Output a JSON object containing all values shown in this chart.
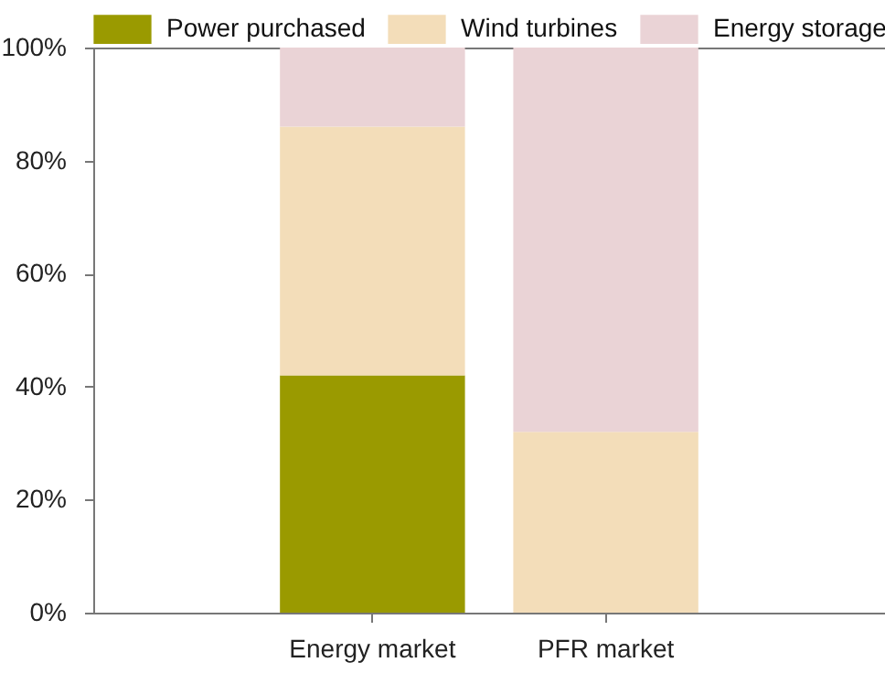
{
  "chart_data": {
    "type": "bar",
    "stacked": true,
    "categories": [
      "Energy market",
      "PFR market"
    ],
    "series": [
      {
        "name": "Power purchased",
        "color": "#9a9a00",
        "values": [
          42,
          0
        ]
      },
      {
        "name": "Wind turbines",
        "color": "#f3ddb9",
        "values": [
          44,
          32
        ]
      },
      {
        "name": "Energy storage",
        "color": "#ead3d6",
        "values": [
          14,
          68
        ]
      }
    ],
    "ylim": [
      0,
      100
    ],
    "yticks": [
      {
        "value": 0,
        "label": "0%"
      },
      {
        "value": 20,
        "label": "20%"
      },
      {
        "value": 40,
        "label": "40%"
      },
      {
        "value": 60,
        "label": "60%"
      },
      {
        "value": 80,
        "label": "80%"
      },
      {
        "value": 100,
        "label": "100%"
      }
    ],
    "legend": "top",
    "grid": false
  }
}
